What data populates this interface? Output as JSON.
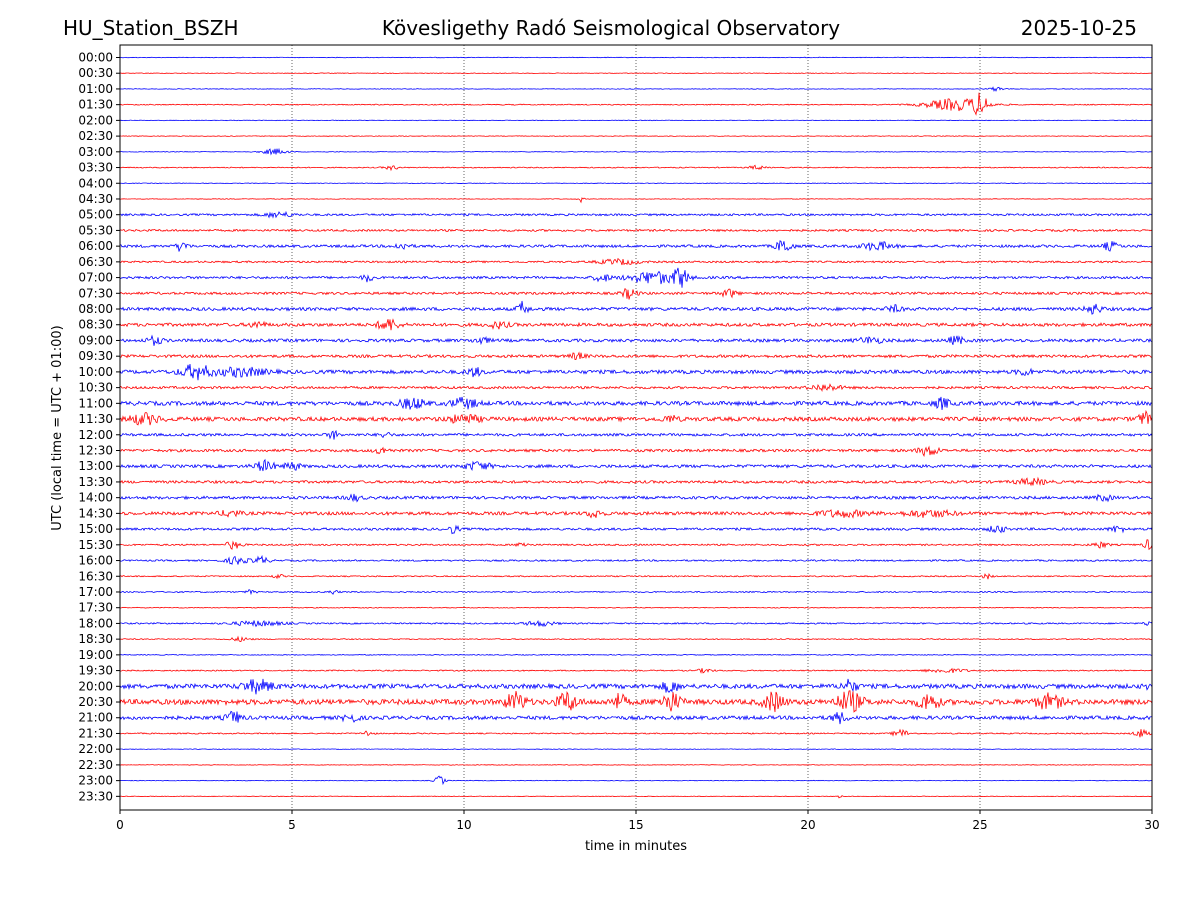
{
  "chart_data": {
    "type": "line",
    "station": "HU_Station_BSZH",
    "title": "Kövesligethy Radó Seismological Observatory",
    "date": "2025-10-25",
    "xlabel": "time in minutes",
    "ylabel": "UTC (local time = UTC + 01:00)",
    "xlim": [
      0,
      30
    ],
    "x_ticks": [
      0,
      5,
      10,
      15,
      20,
      25,
      30
    ],
    "vertical_gridlines": [
      5,
      10,
      15,
      20,
      25
    ],
    "grid_style": "dotted",
    "series_colors": [
      "#0000ff",
      "#ff0000"
    ],
    "rows": [
      {
        "label": "00:00",
        "noise": 0.3,
        "events": []
      },
      {
        "label": "00:30",
        "noise": 0.3,
        "events": []
      },
      {
        "label": "01:00",
        "noise": 0.3,
        "events": [
          {
            "t": 25.5,
            "amp": 2,
            "dur": 0.3
          }
        ]
      },
      {
        "label": "01:30",
        "noise": 0.5,
        "events": [
          {
            "t": 24.3,
            "amp": 6,
            "dur": 1.2
          },
          {
            "t": 25.0,
            "amp": 9,
            "dur": 0.3
          }
        ]
      },
      {
        "label": "02:00",
        "noise": 0.3,
        "events": []
      },
      {
        "label": "02:30",
        "noise": 0.3,
        "events": []
      },
      {
        "label": "03:00",
        "noise": 0.3,
        "events": [
          {
            "t": 4.5,
            "amp": 3,
            "dur": 0.5
          }
        ]
      },
      {
        "label": "03:30",
        "noise": 0.5,
        "events": [
          {
            "t": 7.9,
            "amp": 2,
            "dur": 0.3
          },
          {
            "t": 18.5,
            "amp": 2,
            "dur": 0.3
          }
        ]
      },
      {
        "label": "04:00",
        "noise": 0.3,
        "events": []
      },
      {
        "label": "04:30",
        "noise": 0.3,
        "events": [
          {
            "t": 13.4,
            "amp": 3,
            "dur": 0.1
          }
        ]
      },
      {
        "label": "05:00",
        "noise": 1.0,
        "events": [
          {
            "t": 4.6,
            "amp": 2.5,
            "dur": 0.6
          }
        ]
      },
      {
        "label": "05:30",
        "noise": 1.0,
        "events": []
      },
      {
        "label": "06:00",
        "noise": 1.3,
        "events": [
          {
            "t": 1.8,
            "amp": 6,
            "dur": 0.2
          },
          {
            "t": 8.2,
            "amp": 3,
            "dur": 0.3
          },
          {
            "t": 19.3,
            "amp": 7,
            "dur": 0.3
          },
          {
            "t": 22.0,
            "amp": 4,
            "dur": 0.6
          },
          {
            "t": 28.8,
            "amp": 4,
            "dur": 0.3
          }
        ]
      },
      {
        "label": "06:30",
        "noise": 0.9,
        "events": [
          {
            "t": 14.5,
            "amp": 2.5,
            "dur": 0.8
          }
        ]
      },
      {
        "label": "07:00",
        "noise": 1.2,
        "events": [
          {
            "t": 7.2,
            "amp": 4,
            "dur": 0.2
          },
          {
            "t": 14.0,
            "amp": 4,
            "dur": 0.3
          },
          {
            "t": 15.5,
            "amp": 6,
            "dur": 1.0
          },
          {
            "t": 16.3,
            "amp": 9,
            "dur": 0.3
          }
        ]
      },
      {
        "label": "07:30",
        "noise": 1.2,
        "events": [
          {
            "t": 14.8,
            "amp": 5,
            "dur": 0.3
          },
          {
            "t": 17.7,
            "amp": 4,
            "dur": 0.3
          }
        ]
      },
      {
        "label": "08:00",
        "noise": 1.6,
        "events": [
          {
            "t": 11.7,
            "amp": 7,
            "dur": 0.2
          },
          {
            "t": 22.5,
            "amp": 3,
            "dur": 0.3
          },
          {
            "t": 28.3,
            "amp": 5,
            "dur": 0.3
          }
        ]
      },
      {
        "label": "08:30",
        "noise": 1.6,
        "events": [
          {
            "t": 4.0,
            "amp": 3,
            "dur": 0.3
          },
          {
            "t": 7.8,
            "amp": 6,
            "dur": 0.4
          },
          {
            "t": 11.0,
            "amp": 3,
            "dur": 0.4
          }
        ]
      },
      {
        "label": "09:00",
        "noise": 1.5,
        "events": [
          {
            "t": 1.0,
            "amp": 4,
            "dur": 0.3
          },
          {
            "t": 10.5,
            "amp": 3,
            "dur": 0.3
          },
          {
            "t": 21.8,
            "amp": 3,
            "dur": 0.5
          },
          {
            "t": 24.3,
            "amp": 4,
            "dur": 0.3
          }
        ]
      },
      {
        "label": "09:30",
        "noise": 1.4,
        "events": [
          {
            "t": 13.3,
            "amp": 3,
            "dur": 0.3
          }
        ]
      },
      {
        "label": "10:00",
        "noise": 1.8,
        "events": [
          {
            "t": 2.2,
            "amp": 7,
            "dur": 0.6
          },
          {
            "t": 3.5,
            "amp": 4,
            "dur": 1.0
          },
          {
            "t": 10.3,
            "amp": 4,
            "dur": 0.3
          },
          {
            "t": 26.3,
            "amp": 3,
            "dur": 0.3
          }
        ]
      },
      {
        "label": "10:30",
        "noise": 1.2,
        "events": [
          {
            "t": 20.5,
            "amp": 3,
            "dur": 0.6
          }
        ]
      },
      {
        "label": "11:00",
        "noise": 2.0,
        "events": [
          {
            "t": 8.5,
            "amp": 5,
            "dur": 0.5
          },
          {
            "t": 10.0,
            "amp": 5,
            "dur": 0.5
          },
          {
            "t": 23.9,
            "amp": 5,
            "dur": 0.3
          }
        ]
      },
      {
        "label": "11:30",
        "noise": 2.0,
        "events": [
          {
            "t": 0.7,
            "amp": 5,
            "dur": 0.6
          },
          {
            "t": 10.0,
            "amp": 4,
            "dur": 0.6
          },
          {
            "t": 16.0,
            "amp": 3,
            "dur": 0.3
          },
          {
            "t": 29.8,
            "amp": 6,
            "dur": 0.3
          }
        ]
      },
      {
        "label": "12:00",
        "noise": 1.3,
        "events": [
          {
            "t": 6.2,
            "amp": 4,
            "dur": 0.2
          },
          {
            "t": 7.7,
            "amp": 3,
            "dur": 0.2
          }
        ]
      },
      {
        "label": "12:30",
        "noise": 1.3,
        "events": [
          {
            "t": 7.6,
            "amp": 3,
            "dur": 0.3
          },
          {
            "t": 23.5,
            "amp": 5,
            "dur": 0.4
          }
        ]
      },
      {
        "label": "13:00",
        "noise": 1.5,
        "events": [
          {
            "t": 4.2,
            "amp": 5,
            "dur": 0.4
          },
          {
            "t": 5.0,
            "amp": 4,
            "dur": 0.3
          },
          {
            "t": 10.4,
            "amp": 4,
            "dur": 0.5
          }
        ]
      },
      {
        "label": "13:30",
        "noise": 1.3,
        "events": [
          {
            "t": 26.5,
            "amp": 3,
            "dur": 0.6
          }
        ]
      },
      {
        "label": "14:00",
        "noise": 1.4,
        "events": [
          {
            "t": 6.8,
            "amp": 3,
            "dur": 0.3
          },
          {
            "t": 28.6,
            "amp": 3,
            "dur": 0.3
          }
        ]
      },
      {
        "label": "14:30",
        "noise": 1.6,
        "events": [
          {
            "t": 3.2,
            "amp": 3,
            "dur": 0.4
          },
          {
            "t": 13.8,
            "amp": 4,
            "dur": 0.3
          },
          {
            "t": 21.0,
            "amp": 3,
            "dur": 1.0
          },
          {
            "t": 23.5,
            "amp": 3,
            "dur": 1.0
          }
        ]
      },
      {
        "label": "15:00",
        "noise": 1.2,
        "events": [
          {
            "t": 9.7,
            "amp": 4,
            "dur": 0.2
          },
          {
            "t": 25.5,
            "amp": 4,
            "dur": 0.3
          },
          {
            "t": 29.0,
            "amp": 3,
            "dur": 0.3
          }
        ]
      },
      {
        "label": "15:30",
        "noise": 0.8,
        "events": [
          {
            "t": 3.3,
            "amp": 4,
            "dur": 0.3
          },
          {
            "t": 11.7,
            "amp": 3,
            "dur": 0.2
          },
          {
            "t": 28.5,
            "amp": 3,
            "dur": 0.3
          },
          {
            "t": 29.9,
            "amp": 5,
            "dur": 0.2
          }
        ]
      },
      {
        "label": "16:00",
        "noise": 0.8,
        "events": [
          {
            "t": 3.4,
            "amp": 4,
            "dur": 0.4
          },
          {
            "t": 4.1,
            "amp": 4,
            "dur": 0.3
          }
        ]
      },
      {
        "label": "16:30",
        "noise": 0.6,
        "events": [
          {
            "t": 4.6,
            "amp": 2,
            "dur": 0.2
          },
          {
            "t": 25.2,
            "amp": 2.5,
            "dur": 0.2
          }
        ]
      },
      {
        "label": "17:00",
        "noise": 0.6,
        "events": [
          {
            "t": 3.8,
            "amp": 2,
            "dur": 0.2
          },
          {
            "t": 6.2,
            "amp": 2,
            "dur": 0.2
          }
        ]
      },
      {
        "label": "17:30",
        "noise": 0.4,
        "events": []
      },
      {
        "label": "18:00",
        "noise": 0.7,
        "events": [
          {
            "t": 4.0,
            "amp": 2.5,
            "dur": 1.0
          },
          {
            "t": 12.2,
            "amp": 2.5,
            "dur": 0.6
          },
          {
            "t": 29.9,
            "amp": 2,
            "dur": 0.2
          }
        ]
      },
      {
        "label": "18:30",
        "noise": 0.5,
        "events": [
          {
            "t": 3.5,
            "amp": 2,
            "dur": 0.4
          }
        ]
      },
      {
        "label": "19:00",
        "noise": 0.4,
        "events": []
      },
      {
        "label": "19:30",
        "noise": 0.6,
        "events": [
          {
            "t": 17.0,
            "amp": 2,
            "dur": 0.3
          },
          {
            "t": 24.0,
            "amp": 2,
            "dur": 0.8
          }
        ]
      },
      {
        "label": "20:00",
        "noise": 2.2,
        "events": [
          {
            "t": 4.0,
            "amp": 6,
            "dur": 0.6
          },
          {
            "t": 16.0,
            "amp": 6,
            "dur": 0.3
          },
          {
            "t": 21.2,
            "amp": 6,
            "dur": 0.3
          },
          {
            "t": 30.0,
            "amp": 5,
            "dur": 0.2
          }
        ]
      },
      {
        "label": "20:30",
        "noise": 2.6,
        "events": [
          {
            "t": 11.5,
            "amp": 9,
            "dur": 0.4
          },
          {
            "t": 13.0,
            "amp": 9,
            "dur": 0.4
          },
          {
            "t": 14.5,
            "amp": 7,
            "dur": 0.3
          },
          {
            "t": 16.0,
            "amp": 9,
            "dur": 0.4
          },
          {
            "t": 19.0,
            "amp": 9,
            "dur": 0.4
          },
          {
            "t": 21.2,
            "amp": 10,
            "dur": 0.5
          },
          {
            "t": 23.5,
            "amp": 8,
            "dur": 0.4
          },
          {
            "t": 27.0,
            "amp": 7,
            "dur": 0.5
          }
        ]
      },
      {
        "label": "21:00",
        "noise": 1.8,
        "events": [
          {
            "t": 3.3,
            "amp": 6,
            "dur": 0.3
          },
          {
            "t": 6.7,
            "amp": 4,
            "dur": 0.3
          },
          {
            "t": 20.9,
            "amp": 5,
            "dur": 0.3
          }
        ]
      },
      {
        "label": "21:30",
        "noise": 0.6,
        "events": [
          {
            "t": 7.2,
            "amp": 3,
            "dur": 0.2
          },
          {
            "t": 22.7,
            "amp": 4,
            "dur": 0.3
          },
          {
            "t": 29.7,
            "amp": 4,
            "dur": 0.3
          }
        ]
      },
      {
        "label": "22:00",
        "noise": 0.3,
        "events": []
      },
      {
        "label": "22:30",
        "noise": 0.3,
        "events": []
      },
      {
        "label": "23:00",
        "noise": 0.3,
        "events": [
          {
            "t": 9.3,
            "amp": 5,
            "dur": 0.2
          }
        ]
      },
      {
        "label": "23:30",
        "noise": 0.3,
        "events": [
          {
            "t": 20.9,
            "amp": 2,
            "dur": 0.1
          }
        ]
      }
    ]
  }
}
